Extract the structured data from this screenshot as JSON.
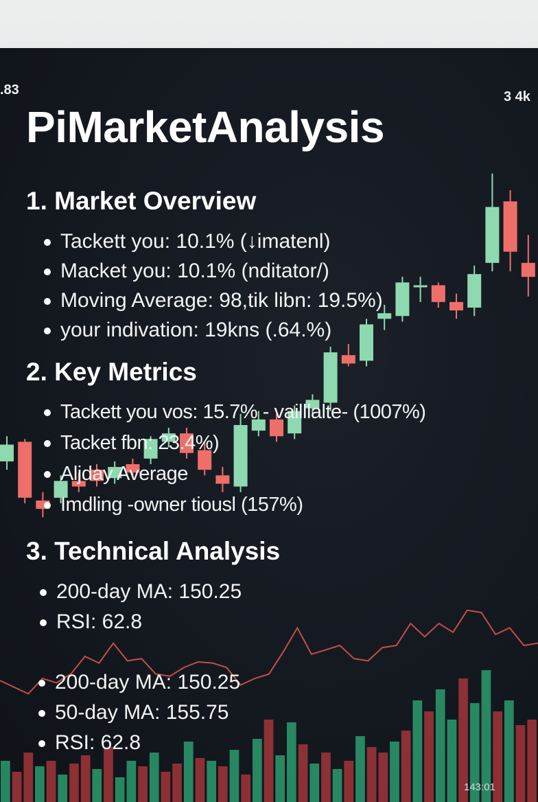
{
  "corner_labels": {
    "top_left": ".83",
    "top_right": "3 4k",
    "bottom_right": "143:01"
  },
  "title": "PiMarketAnalysis",
  "sections": [
    {
      "heading": "1. Market Overview",
      "items": [
        "Tackett you: 10.1% (↓imatenl)",
        "Macket you: 10.1% (nditator/)",
        "Moving Average: 98,tik libn: 19.5%)",
        "your indivation: 19kns (.64.%)"
      ]
    },
    {
      "heading": "2. Key Metrics",
      "items": [
        "Tackett you vos: 15.7% - vailllalte- (1007%)",
        "Tacket fbn: 23.4%)",
        "Aljday Average",
        "Imdling -owner tiousl (157%)"
      ]
    },
    {
      "heading": "3. Technical Analysis",
      "items": [
        "200-day MA: 150.25",
        "RSI: 62.8"
      ]
    }
  ],
  "extra_list": [
    "200-day MA: 150.25",
    "50-day MA: 155.75",
    "RSI: 62.8"
  ],
  "colors": {
    "bull": "#8fd9b0",
    "bear": "#ee6f6a",
    "line": "#d9534f",
    "vol_green": "#2fae7a",
    "vol_red": "#b53a3e"
  },
  "chart_data": {
    "type": "candlestick",
    "candles": [
      {
        "o": 59,
        "c": 65,
        "h": 68,
        "l": 56
      },
      {
        "o": 66,
        "c": 46,
        "h": 67,
        "l": 44
      },
      {
        "o": 45,
        "c": 42,
        "h": 48,
        "l": 39
      },
      {
        "o": 46,
        "c": 52,
        "h": 54,
        "l": 44
      },
      {
        "o": 52,
        "c": 50,
        "h": 55,
        "l": 48
      },
      {
        "o": 56,
        "c": 52,
        "h": 58,
        "l": 50
      },
      {
        "o": 53,
        "c": 57,
        "h": 59,
        "l": 51
      },
      {
        "o": 58,
        "c": 55,
        "h": 60,
        "l": 53
      },
      {
        "o": 60,
        "c": 67,
        "h": 68,
        "l": 58
      },
      {
        "o": 66,
        "c": 69,
        "h": 71,
        "l": 64
      },
      {
        "o": 69,
        "c": 62,
        "h": 71,
        "l": 60
      },
      {
        "o": 63,
        "c": 56,
        "h": 66,
        "l": 54
      },
      {
        "o": 54,
        "c": 51,
        "h": 57,
        "l": 48
      },
      {
        "o": 50,
        "c": 72,
        "h": 76,
        "l": 48
      },
      {
        "o": 70,
        "c": 74,
        "h": 77,
        "l": 68
      },
      {
        "o": 74,
        "c": 68,
        "h": 76,
        "l": 66
      },
      {
        "o": 69,
        "c": 77,
        "h": 79,
        "l": 67
      },
      {
        "o": 78,
        "c": 81,
        "h": 83,
        "l": 76
      },
      {
        "o": 80,
        "c": 98,
        "h": 100,
        "l": 77
      },
      {
        "o": 97,
        "c": 94,
        "h": 101,
        "l": 93
      },
      {
        "o": 95,
        "c": 108,
        "h": 110,
        "l": 93
      },
      {
        "o": 110,
        "c": 112,
        "h": 115,
        "l": 106
      },
      {
        "o": 111,
        "c": 123,
        "h": 125,
        "l": 109
      },
      {
        "o": 122,
        "c": 122,
        "h": 125,
        "l": 116
      },
      {
        "o": 122,
        "c": 116,
        "h": 123,
        "l": 114
      },
      {
        "o": 116,
        "c": 113,
        "h": 119,
        "l": 110
      },
      {
        "o": 114,
        "c": 126,
        "h": 129,
        "l": 111
      },
      {
        "o": 130,
        "c": 150,
        "h": 162,
        "l": 127
      },
      {
        "o": 152,
        "c": 134,
        "h": 156,
        "l": 127
      },
      {
        "o": 130,
        "c": 125,
        "h": 140,
        "l": 118
      }
    ],
    "indicator": [
      18,
      12,
      6,
      20,
      16,
      24,
      40,
      34,
      52,
      36,
      38,
      24,
      22,
      30,
      35,
      34,
      30,
      14,
      20,
      24,
      44,
      66,
      42,
      46,
      50,
      38,
      36,
      48,
      50,
      70,
      58,
      70,
      62,
      82,
      80,
      60,
      66,
      50,
      52
    ],
    "volume": [
      30,
      22,
      36,
      26,
      30,
      20,
      28,
      34,
      24,
      40,
      18,
      30,
      26,
      36,
      22,
      28,
      44,
      32,
      30,
      26,
      38,
      20,
      46,
      60,
      34,
      58,
      42,
      28,
      36,
      24,
      30,
      48,
      40,
      36,
      44,
      52,
      74,
      66,
      82,
      60,
      90,
      72,
      96,
      66,
      74,
      56,
      60
    ],
    "volume_up": [
      true,
      false,
      false,
      true,
      false,
      true,
      false,
      false,
      true,
      false,
      true,
      true,
      false,
      true,
      false,
      false,
      true,
      false,
      true,
      false,
      true,
      false,
      true,
      false,
      true,
      true,
      false,
      true,
      false,
      true,
      false,
      true,
      false,
      false,
      true,
      false,
      true,
      false,
      true,
      true,
      false,
      true,
      true,
      false,
      true,
      false,
      false
    ]
  }
}
